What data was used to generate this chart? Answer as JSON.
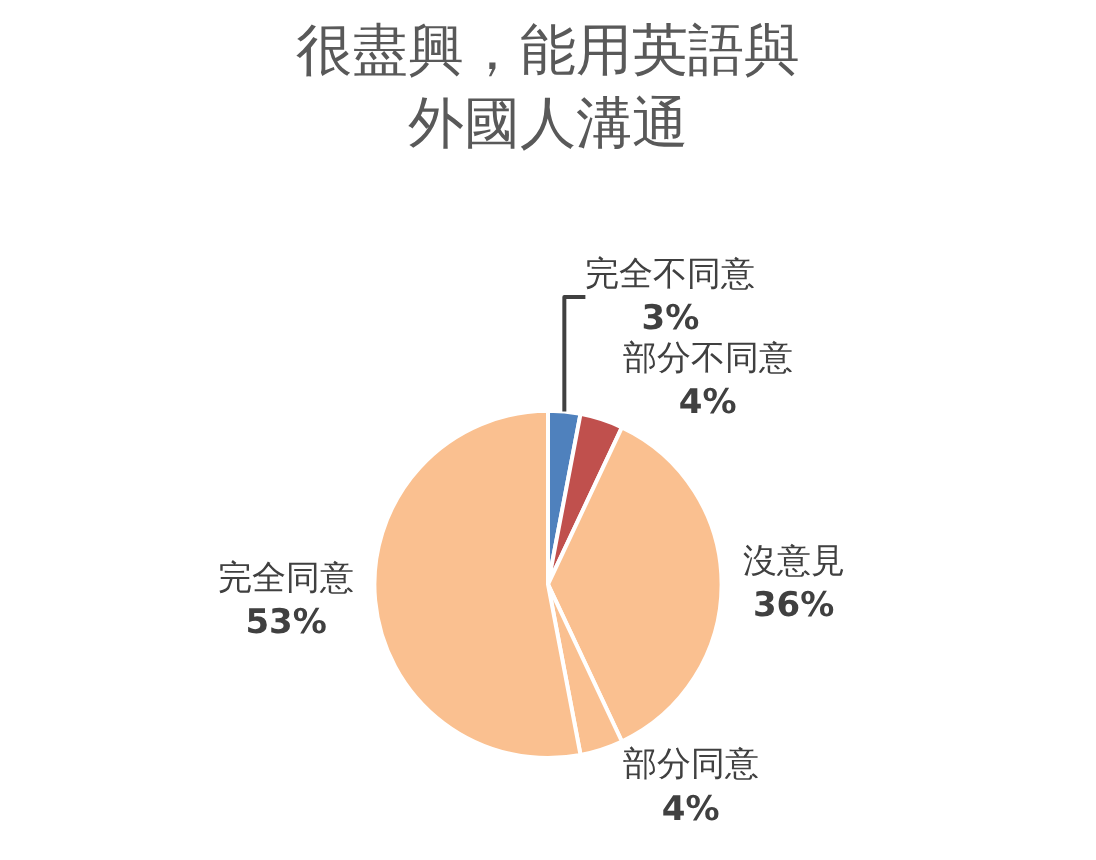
{
  "chart_data": {
    "type": "pie",
    "title": "很盡興，能用英語與外國人溝通",
    "categories": [
      "完全不同意",
      "部分不同意",
      "沒意見",
      "部分同意",
      "完全同意"
    ],
    "values": [
      3,
      4,
      36,
      4,
      53
    ],
    "value_labels": [
      "3%",
      "4%",
      "36%",
      "4%",
      "53%"
    ],
    "colors": [
      "#4f81bd",
      "#c0504d",
      "#fac090",
      "#fac090",
      "#fac090"
    ],
    "legend": false
  }
}
